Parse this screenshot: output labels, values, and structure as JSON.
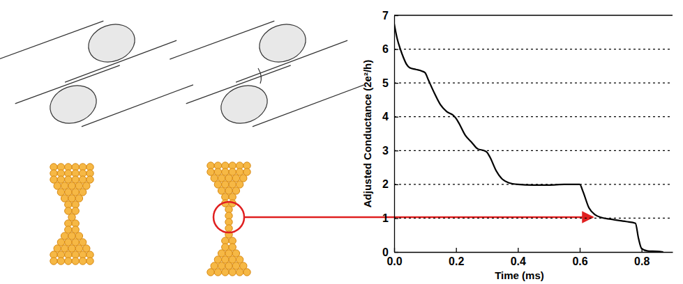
{
  "chart_data": {
    "type": "line",
    "y_label": "Adjusted Conductance (2e²/h)",
    "x_label": "Time (ms)",
    "x": [
      0,
      0.01,
      0.02,
      0.03,
      0.04,
      0.05,
      0.07,
      0.09,
      0.1,
      0.11,
      0.13,
      0.15,
      0.17,
      0.19,
      0.2,
      0.21,
      0.23,
      0.25,
      0.27,
      0.29,
      0.3,
      0.31,
      0.33,
      0.35,
      0.37,
      0.4,
      0.45,
      0.5,
      0.55,
      0.6,
      0.61,
      0.63,
      0.65,
      0.67,
      0.7,
      0.75,
      0.78,
      0.79,
      0.8,
      0.82,
      0.85,
      0.87
    ],
    "values": [
      6.75,
      6.3,
      6.0,
      5.75,
      5.55,
      5.45,
      5.4,
      5.35,
      5.3,
      5.1,
      4.7,
      4.35,
      4.15,
      4.05,
      3.95,
      3.8,
      3.45,
      3.25,
      3.05,
      3.0,
      2.95,
      2.8,
      2.4,
      2.15,
      2.05,
      2.0,
      1.98,
      1.98,
      2.0,
      2.0,
      1.8,
      1.3,
      1.1,
      1.02,
      0.97,
      0.9,
      0.85,
      0.4,
      0.1,
      0.03,
      0.02,
      0.0
    ],
    "color": "#000000",
    "xlim": [
      0,
      0.9
    ],
    "xticks": [
      {
        "value": 0,
        "label": "0.0"
      },
      0.2,
      0.4,
      0.6,
      0.8
    ],
    "ylim": [
      0,
      7
    ],
    "yticks": [
      0,
      1,
      2,
      3,
      4,
      5,
      6,
      7
    ],
    "grid": true
  }
}
